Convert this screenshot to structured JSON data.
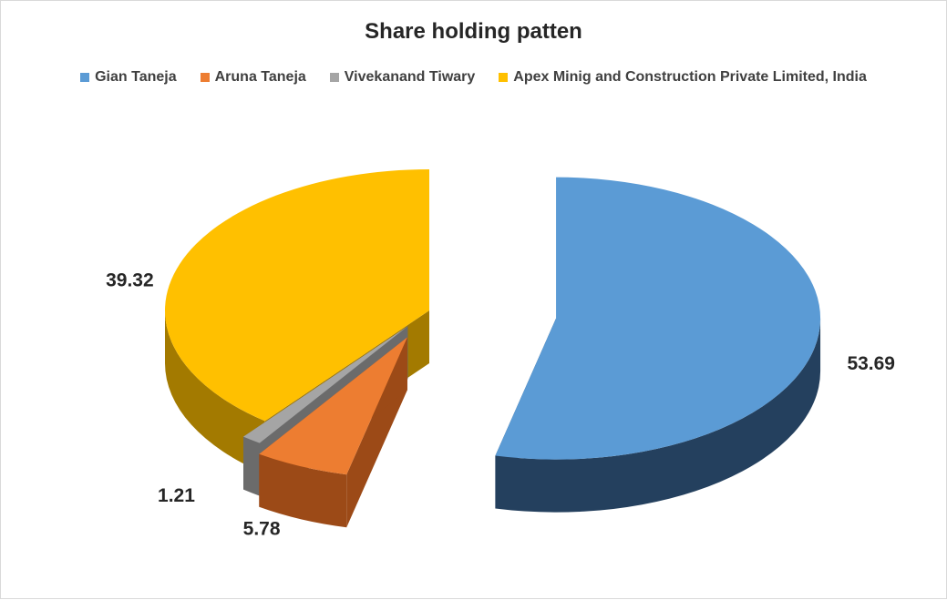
{
  "chart_data": {
    "type": "pie",
    "title": "Share holding patten",
    "legend_position": "top",
    "slices": [
      {
        "name": "Gian Taneja",
        "value": 53.69,
        "label": "53.69",
        "color": "#5B9BD5",
        "dark": "#24405E"
      },
      {
        "name": "Aruna Taneja",
        "value": 5.78,
        "label": "5.78",
        "color": "#ED7D31",
        "dark": "#9C4A17"
      },
      {
        "name": "Vivekanand Tiwary",
        "value": 1.21,
        "label": "1.21",
        "color": "#A5A5A5",
        "dark": "#6B6B6B"
      },
      {
        "name": "Apex Minig and Construction Private Limited, India",
        "value": 39.32,
        "label": "39.32",
        "color": "#FFC000",
        "dark": "#A37A00"
      }
    ]
  }
}
